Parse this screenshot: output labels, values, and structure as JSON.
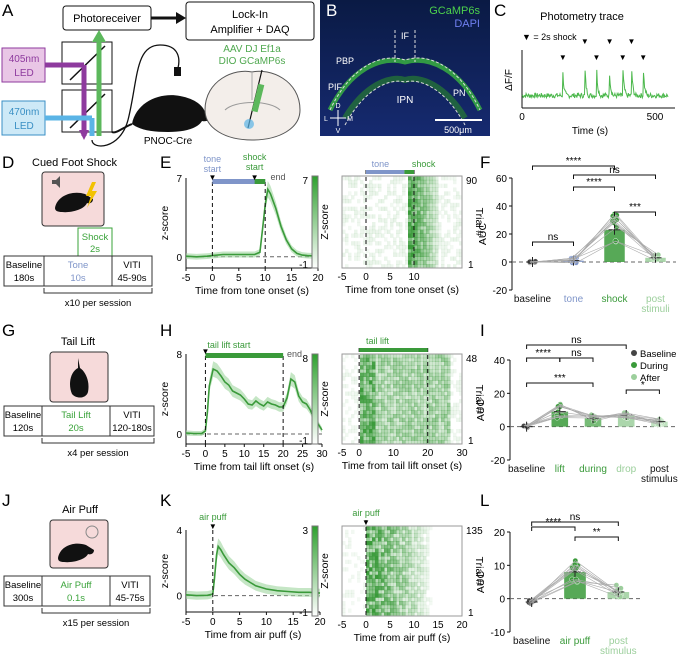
{
  "panel_letters": {
    "a": "A",
    "b": "B",
    "c": "C",
    "d": "D",
    "e": "E",
    "f": "F",
    "g": "G",
    "h": "H",
    "i": "I",
    "j": "J",
    "k": "K",
    "l": "L"
  },
  "panelA": {
    "photoreceiver": "Photoreceiver",
    "lockin_line1": "Lock-In",
    "lockin_line2": "Amplifier + DAQ",
    "led405_line1": "405nm",
    "led405_line2": "LED",
    "led470_line1": "470nm",
    "led470_line2": "LED",
    "virus_line1": "AAV DJ Ef1a",
    "virus_line2": "DIO GCaMP6s",
    "mouse_label": "PNOC-Cre",
    "colors": {
      "violet": "#8e3a9e",
      "blue": "#5ab4e6",
      "green": "#5cb85c",
      "led405_box": "#e9c6e6",
      "led470_box": "#cde9f7"
    }
  },
  "panelB": {
    "gcamp": "GCaMP6s",
    "dapi": "DAPI",
    "if": "IF",
    "pbp": "PBP",
    "pif": "PIF",
    "ipn": "IPN",
    "pn": "PN",
    "scale": "500μm",
    "compass": {
      "d": "D",
      "v": "V",
      "l": "L",
      "m": "M"
    }
  },
  "chart_data": [
    {
      "id": "C",
      "type": "line",
      "title": "Photometry trace",
      "legend": "▼ = 2s shock",
      "xlabel": "Time (s)",
      "ylabel": "ΔF/F",
      "xlim": [
        0,
        500
      ],
      "xticks": [
        "0",
        "500"
      ],
      "shock_times_s": [
        140,
        215,
        255,
        300,
        345,
        375,
        415
      ]
    },
    {
      "id": "E1",
      "type": "line",
      "xlabel": "Time from tone onset (s)",
      "ylabel": "z-score",
      "xlim": [
        -5,
        20
      ],
      "ylim": [
        -1,
        7
      ],
      "xticks": [
        "-5",
        "0",
        "5",
        "10",
        "15",
        "20"
      ],
      "yticks": [
        "7",
        "0"
      ],
      "annotations": {
        "tone_start_l1": "tone",
        "tone_start_l2": "start",
        "shock_start_l1": "shock",
        "shock_start_l2": "start",
        "end": "end"
      },
      "x": [
        -5,
        -3,
        -1,
        0,
        2,
        4,
        6,
        8,
        9,
        9.5,
        10,
        10.5,
        11,
        12,
        13,
        14,
        15,
        16,
        17,
        18,
        20
      ],
      "y": [
        0.05,
        0,
        0.05,
        0.1,
        0.2,
        0.2,
        0.2,
        0.2,
        0.4,
        2.5,
        4.6,
        6.0,
        5.6,
        4.3,
        2.7,
        1.5,
        0.7,
        0.3,
        0.15,
        0.1,
        0.05
      ]
    },
    {
      "id": "E2",
      "type": "heatmap",
      "xlabel": "Time from tone onset (s)",
      "ylabel": "Trial #",
      "colorbar_label": "Z-score",
      "colorbar_ticks": [
        "7",
        "-1"
      ],
      "xticks": [
        "-5",
        "0",
        "5",
        "10"
      ],
      "yticks": [
        "90",
        "1"
      ],
      "bars": {
        "tone": "tone",
        "shock": "shock"
      },
      "n_trials": 90
    },
    {
      "id": "F",
      "type": "bar",
      "ylabel": "AUC",
      "categories": [
        "baseline",
        "tone",
        "shock",
        "post stimuli"
      ],
      "values": [
        0,
        1,
        23,
        3
      ],
      "ylim": [
        -20,
        60
      ],
      "yticks": [
        "60",
        "40",
        "20",
        "0",
        "-20"
      ],
      "significance": [
        {
          "pair": "baseline-tone",
          "label": "ns"
        },
        {
          "pair": "baseline-shock",
          "label": "****"
        },
        {
          "pair": "tone-shock",
          "label": "****"
        },
        {
          "pair": "tone-post",
          "label": "ns"
        },
        {
          "pair": "shock-post",
          "label": "***"
        }
      ]
    },
    {
      "id": "H1",
      "type": "line",
      "xlabel": "Time from tail lift onset (s)",
      "ylabel": "z-score",
      "xlim": [
        -5,
        30
      ],
      "ylim": [
        -1,
        8
      ],
      "xticks": [
        "-5",
        "0",
        "5",
        "10",
        "15",
        "20",
        "25",
        "30"
      ],
      "yticks": [
        "8",
        "0"
      ],
      "annotations": {
        "start": "tail lift start",
        "end": "end"
      },
      "x": [
        -5,
        -3,
        -1,
        0,
        0.5,
        1,
        2,
        3,
        4,
        5,
        6,
        7,
        8,
        9,
        10,
        11,
        12,
        13,
        14,
        15,
        16,
        17,
        18,
        19,
        20,
        21,
        22,
        23,
        24,
        25,
        26,
        27,
        28,
        29,
        30
      ],
      "y": [
        0.1,
        0.05,
        0.05,
        0.3,
        2.2,
        4.8,
        6.5,
        6.3,
        5.8,
        5.2,
        4.9,
        4.3,
        4.1,
        3.9,
        3.5,
        3.0,
        2.9,
        3.3,
        3.0,
        2.8,
        3.2,
        3.0,
        2.9,
        2.7,
        2.7,
        3.6,
        5.5,
        5.2,
        3.8,
        3.2,
        3.0,
        2.4,
        1.5,
        1.0,
        0.4
      ]
    },
    {
      "id": "H2",
      "type": "heatmap",
      "xlabel": "Time from tail lift onset (s)",
      "ylabel": "Trial #",
      "colorbar_label": "Z-score",
      "colorbar_ticks": [
        "8",
        "-1"
      ],
      "xticks": [
        "-5",
        "0",
        "10",
        "20",
        "30"
      ],
      "yticks": [
        "48",
        "1"
      ],
      "bars": {
        "lift": "tail lift"
      },
      "n_trials": 48
    },
    {
      "id": "I",
      "type": "bar",
      "ylabel": "AUC",
      "categories": [
        "baseline",
        "lift",
        "during",
        "drop",
        "post stimulus"
      ],
      "values": [
        0,
        9,
        5,
        7,
        3
      ],
      "ylim": [
        -20,
        40
      ],
      "yticks": [
        "40",
        "20",
        "0",
        "-20"
      ],
      "legend": [
        "Baseline",
        "During",
        "After"
      ],
      "significance": [
        {
          "pair": "baseline-drop",
          "label": "ns"
        },
        {
          "pair": "baseline-lift",
          "label": "****"
        },
        {
          "pair": "lift-during",
          "label": "ns"
        },
        {
          "pair": "baseline-during",
          "label": "***"
        },
        {
          "pair": "drop-post",
          "label": "*"
        }
      ]
    },
    {
      "id": "K1",
      "type": "line",
      "xlabel": "Time from air puff (s)",
      "ylabel": "z-score",
      "xlim": [
        -5,
        20
      ],
      "ylim": [
        -1,
        4
      ],
      "xticks": [
        "-5",
        "0",
        "5",
        "10",
        "15",
        "20"
      ],
      "yticks": [
        "4",
        "0"
      ],
      "annotations": {
        "puff": "air puff"
      },
      "x": [
        -5,
        -3,
        -1,
        0,
        0.3,
        0.7,
        1,
        1.5,
        2,
        3,
        4,
        5,
        6,
        7,
        8,
        9,
        10,
        12,
        14,
        16,
        18,
        20
      ],
      "y": [
        0.05,
        0,
        0.02,
        0.1,
        1.0,
        2.5,
        3.0,
        2.8,
        2.5,
        2.0,
        1.7,
        1.3,
        1.0,
        0.8,
        0.6,
        0.5,
        0.4,
        0.3,
        0.25,
        0.2,
        0.2,
        0.15
      ]
    },
    {
      "id": "K2",
      "type": "heatmap",
      "xlabel": "Time from air puff (s)",
      "ylabel": "Trial #",
      "colorbar_label": "Z-score",
      "colorbar_ticks": [
        "3",
        "-1"
      ],
      "xticks": [
        "-5",
        "0",
        "5",
        "10",
        "15",
        "20"
      ],
      "yticks": [
        "135",
        "1"
      ],
      "bars": {
        "puff": "air puff"
      },
      "n_trials": 135
    },
    {
      "id": "L",
      "type": "bar",
      "ylabel": "AUC",
      "categories": [
        "baseline",
        "air puff",
        "post stimulus"
      ],
      "values": [
        -1,
        8,
        2
      ],
      "ylim": [
        -10,
        20
      ],
      "yticks": [
        "20",
        "10",
        "0",
        "-10"
      ],
      "significance": [
        {
          "pair": "baseline-puff",
          "label": "****"
        },
        {
          "pair": "baseline-post",
          "label": "ns"
        },
        {
          "pair": "puff-post",
          "label": "**"
        }
      ]
    }
  ],
  "panelD": {
    "title": "Cued Foot Shock",
    "shock_l1": "Shock",
    "shock_l2": "2s",
    "b1": "Baseline",
    "b2": "180s",
    "t1": "Tone",
    "t2": "10s",
    "v1": "VITI",
    "v2": "45-90s",
    "rep": "x10 per session"
  },
  "panelG": {
    "title": "Tail Lift",
    "b1": "Baseline",
    "b2": "120s",
    "t1": "Tail Lift",
    "t2": "20s",
    "v1": "VITI",
    "v2": "120-180s",
    "rep": "x4 per session"
  },
  "panelJ": {
    "title": "Air Puff",
    "b1": "Baseline",
    "b2": "300s",
    "t1": "Air Puff",
    "t2": "0.1s",
    "v1": "VITI",
    "v2": "45-75s",
    "rep": "x15 per session"
  },
  "colors": {
    "green": "#3a9a3a",
    "light_green": "#7cc47c",
    "tone_blue": "#7f95c9",
    "post_gray": "#9ccf9c"
  }
}
